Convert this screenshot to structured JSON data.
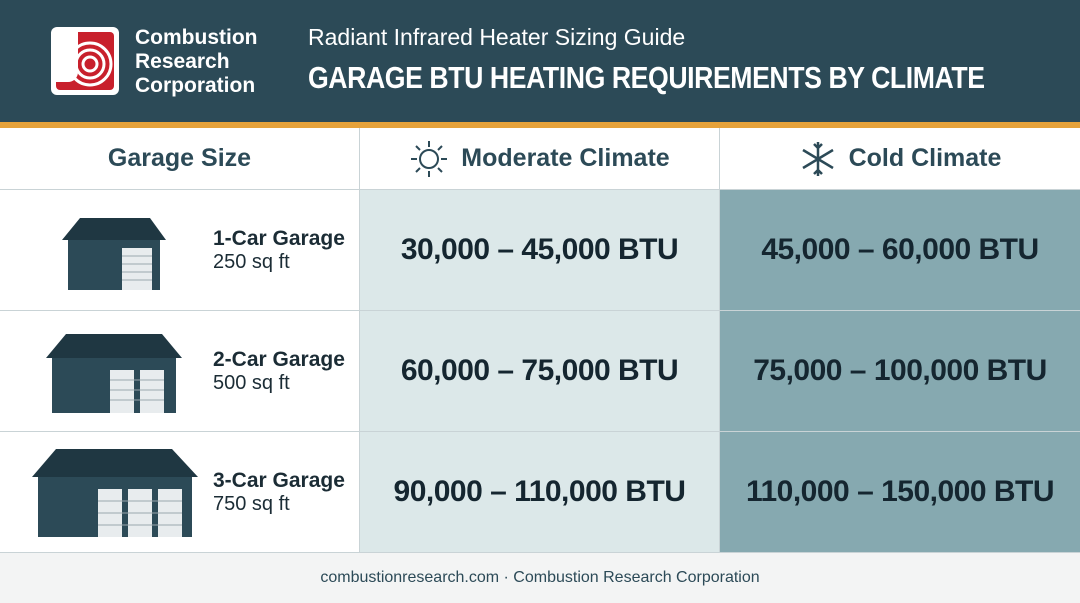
{
  "header": {
    "logo_lines": [
      "Combustion",
      "Research",
      "Corporation"
    ],
    "subtitle": "Radiant Infrared Heater Sizing Guide",
    "title": "GARAGE BTU HEATING REQUIREMENTS BY CLIMATE"
  },
  "table": {
    "columns": [
      "Garage Size",
      "Moderate Climate",
      "Cold Climate"
    ],
    "rows": [
      [
        "1-Car Garage",
        "250 sq ft",
        "30,000 – 45,000 BTU",
        "45,000 – 60,000 BTU"
      ],
      [
        "2-Car Garage",
        "500 sq ft",
        "60,000 – 75,000 BTU",
        "75,000 – 100,000 BTU"
      ],
      [
        "3-Car Garage",
        "750 sq ft",
        "90,000 – 110,000 BTU",
        "110,000 – 150,000 BTU"
      ]
    ]
  },
  "footer": {
    "text": "combustionresearch.com · Combustion Research Corporation"
  }
}
